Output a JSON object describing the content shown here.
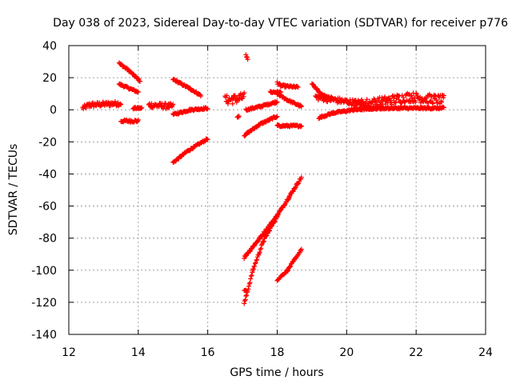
{
  "chart_data": {
    "type": "scatter",
    "title": "Day 038 of 2023, Sidereal Day-to-day VTEC variation (SDTVAR) for receiver p776",
    "xlabel": "GPS time / hours",
    "ylabel": "SDTVAR / TECUs",
    "xlim": [
      12,
      24
    ],
    "ylim": [
      -140,
      40
    ],
    "xticks": [
      "12",
      "14",
      "16",
      "18",
      "20",
      "22",
      "24"
    ],
    "yticks": [
      "40",
      "20",
      "0",
      "-20",
      "-40",
      "-60",
      "-80",
      "-100",
      "-120",
      "-140"
    ],
    "grid": true,
    "marker": "plus",
    "color": "#ff0000",
    "series": [
      {
        "name": "s1",
        "segments": [
          [
            12.4,
            1,
            12.6,
            3
          ],
          [
            12.6,
            3,
            13.5,
            4
          ]
        ],
        "noise": 1.5
      },
      {
        "name": "s2",
        "segments": [
          [
            13.45,
            29,
            13.7,
            25
          ],
          [
            13.7,
            25,
            14.05,
            18
          ]
        ],
        "noise": 0.6
      },
      {
        "name": "s3",
        "segments": [
          [
            13.45,
            16,
            14.0,
            11
          ]
        ],
        "noise": 0.6
      },
      {
        "name": "s4",
        "segments": [
          [
            13.5,
            -7,
            14.0,
            -7
          ]
        ],
        "noise": 0.8
      },
      {
        "name": "s5",
        "segments": [
          [
            13.85,
            1,
            14.1,
            1
          ]
        ],
        "noise": 0.6
      },
      {
        "name": "s6",
        "segments": [
          [
            14.3,
            3,
            15.0,
            2
          ]
        ],
        "noise": 1.8
      },
      {
        "name": "s7",
        "segments": [
          [
            15.0,
            19,
            15.5,
            13
          ],
          [
            15.5,
            13,
            15.8,
            9
          ]
        ],
        "noise": 0.6
      },
      {
        "name": "s8",
        "segments": [
          [
            15.0,
            -33,
            15.4,
            -26
          ],
          [
            15.4,
            -26,
            16.0,
            -18
          ]
        ],
        "noise": 0.6
      },
      {
        "name": "s9",
        "segments": [
          [
            15.0,
            -3,
            15.5,
            0
          ],
          [
            15.5,
            0,
            16.0,
            1
          ]
        ],
        "noise": 0.6
      },
      {
        "name": "s10",
        "segments": [
          [
            16.5,
            6,
            16.9,
            7
          ],
          [
            16.9,
            7,
            17.05,
            8
          ]
        ],
        "noise": 3.0
      },
      {
        "name": "s11",
        "segments": [
          [
            16.85,
            -5,
            16.9,
            -4
          ]
        ],
        "noise": 0.4
      },
      {
        "name": "s12",
        "segments": [
          [
            17.1,
            34,
            17.15,
            32
          ]
        ],
        "noise": 0.8
      },
      {
        "name": "s13",
        "segments": [
          [
            17.1,
            0,
            17.5,
            2
          ],
          [
            17.5,
            2,
            18.0,
            5
          ]
        ],
        "noise": 0.6
      },
      {
        "name": "s14",
        "segments": [
          [
            17.05,
            -16,
            17.5,
            -9
          ],
          [
            17.5,
            -9,
            18.0,
            -4
          ]
        ],
        "noise": 0.6
      },
      {
        "name": "s15",
        "segments": [
          [
            17.8,
            11,
            18.1,
            11
          ]
        ],
        "noise": 0.6
      },
      {
        "name": "s16",
        "segments": [
          [
            18.0,
            17,
            18.1,
            15
          ],
          [
            18.1,
            15,
            18.6,
            14
          ]
        ],
        "noise": 0.7
      },
      {
        "name": "s17",
        "segments": [
          [
            18.0,
            10,
            18.3,
            6
          ],
          [
            18.3,
            6,
            18.7,
            2
          ]
        ],
        "noise": 0.6
      },
      {
        "name": "s18",
        "segments": [
          [
            18.0,
            -10,
            18.7,
            -10
          ]
        ],
        "noise": 0.6
      },
      {
        "name": "s19",
        "segments": [
          [
            17.05,
            -92,
            17.5,
            -80
          ],
          [
            17.5,
            -80,
            18.0,
            -66
          ],
          [
            18.0,
            -66,
            18.35,
            -54
          ],
          [
            18.35,
            -54,
            18.7,
            -42
          ]
        ],
        "noise": 0.8
      },
      {
        "name": "s20",
        "segments": [
          [
            17.05,
            -121,
            17.3,
            -100
          ],
          [
            17.3,
            -100,
            17.6,
            -82
          ],
          [
            17.6,
            -82,
            18.0,
            -66
          ]
        ],
        "noise": 0.8
      },
      {
        "name": "s21",
        "segments": [
          [
            17.05,
            -113,
            17.1,
            -112
          ]
        ],
        "noise": 0.5
      },
      {
        "name": "s22",
        "segments": [
          [
            18.0,
            -106,
            18.3,
            -100
          ],
          [
            18.3,
            -100,
            18.7,
            -87
          ]
        ],
        "noise": 0.6
      },
      {
        "name": "s23",
        "segments": [
          [
            19.0,
            16,
            19.3,
            9
          ],
          [
            19.3,
            9,
            19.6,
            7
          ]
        ],
        "noise": 0.7
      },
      {
        "name": "s24",
        "segments": [
          [
            19.1,
            8,
            20.0,
            5
          ],
          [
            20.0,
            5,
            20.5,
            4
          ]
        ],
        "noise": 1.8
      },
      {
        "name": "s25",
        "segments": [
          [
            19.2,
            -5,
            19.6,
            -2
          ],
          [
            19.6,
            -2,
            20.2,
            0
          ],
          [
            20.2,
            0,
            21.0,
            1
          ]
        ],
        "noise": 0.6
      },
      {
        "name": "s26",
        "segments": [
          [
            20.2,
            3,
            21.0,
            5
          ],
          [
            21.0,
            5,
            21.8,
            8
          ],
          [
            21.8,
            8,
            22.8,
            6
          ]
        ],
        "noise": 3.0
      },
      {
        "name": "s27",
        "segments": [
          [
            20.5,
            1,
            22.8,
            1
          ]
        ],
        "noise": 0.6
      }
    ]
  }
}
